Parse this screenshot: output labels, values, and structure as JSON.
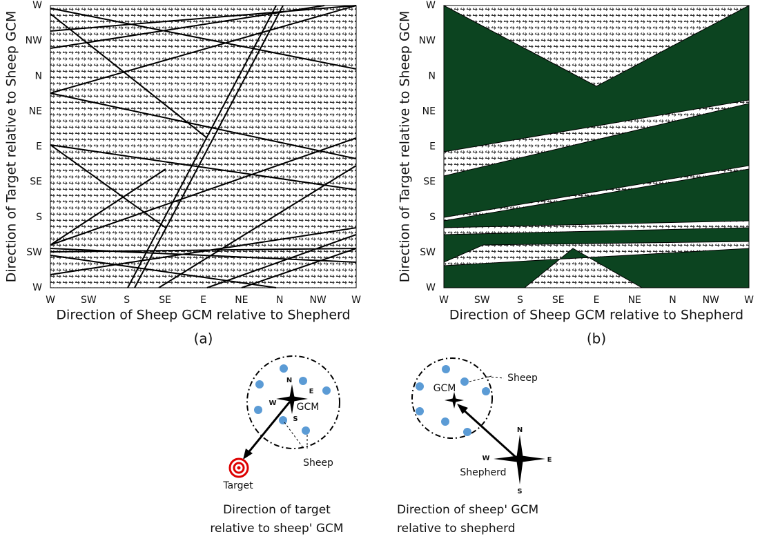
{
  "panels": [
    {
      "label": "(a)",
      "x_axis": {
        "title": "Direction of Sheep GCM relative to Shepherd",
        "ticks": [
          "W",
          "SW",
          "S",
          "SE",
          "E",
          "NE",
          "N",
          "NW",
          "W"
        ]
      },
      "y_axis": {
        "title": "Direction of Target relative to Sheep GCM",
        "ticks": [
          "W",
          "SW",
          "S",
          "SE",
          "E",
          "NE",
          "N",
          "NW",
          "W"
        ]
      }
    },
    {
      "label": "(b)",
      "x_axis": {
        "title": "Direction of Sheep GCM relative to Shepherd",
        "ticks": [
          "W",
          "SW",
          "S",
          "SE",
          "E",
          "NE",
          "N",
          "NW",
          "W"
        ]
      },
      "y_axis": {
        "title": "Direction of Target relative to Sheep GCM",
        "ticks": [
          "W",
          "SW",
          "S",
          "SE",
          "E",
          "NE",
          "N",
          "NW",
          "W"
        ]
      }
    }
  ],
  "diagrams": [
    {
      "compass": {
        "n": "N",
        "e": "E",
        "w": "W",
        "s": "S"
      },
      "gcm": "GCM",
      "sheep": "Sheep",
      "target": "Target",
      "caption": [
        "Direction of target",
        "relative to sheep' GCM"
      ]
    },
    {
      "gcm": "GCM",
      "sheep": "Sheep",
      "compass": {
        "n": "N",
        "e": "E",
        "w": "W",
        "s": "S"
      },
      "shepherd": "Shepherd",
      "caption": [
        "Direction of sheep' GCM",
        "relative to shepherd"
      ]
    }
  ]
}
